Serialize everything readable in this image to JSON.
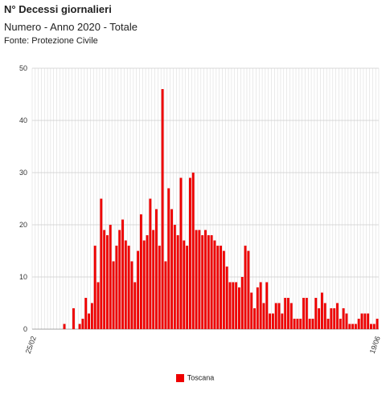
{
  "header": {
    "title": "N° Decessi giornalieri",
    "subtitle": "Numero - Anno 2020 - Totale",
    "source": "Fonte: Protezione Civile"
  },
  "chart_data": {
    "type": "bar",
    "title": "N° Decessi giornalieri",
    "subtitle": "Numero - Anno 2020 - Totale",
    "x_start_label": "25/02",
    "x_end_label": "19/06",
    "ylim": [
      0,
      50
    ],
    "yticks": [
      0,
      10,
      20,
      30,
      40,
      50
    ],
    "grid": true,
    "legend_position": "bottom",
    "color": "#ee0000",
    "series": [
      {
        "name": "Toscana",
        "values": [
          0,
          0,
          0,
          0,
          0,
          0,
          0,
          0,
          0,
          0,
          1,
          0,
          0,
          4,
          0,
          1,
          2,
          6,
          3,
          5,
          16,
          9,
          25,
          19,
          18,
          20,
          13,
          16,
          19,
          21,
          17,
          16,
          13,
          9,
          15,
          22,
          17,
          18,
          25,
          19,
          23,
          16,
          46,
          13,
          27,
          23,
          20,
          18,
          29,
          17,
          16,
          29,
          30,
          19,
          19,
          18,
          19,
          18,
          18,
          17,
          16,
          16,
          15,
          12,
          9,
          9,
          9,
          8,
          10,
          16,
          15,
          7,
          4,
          8,
          9,
          5,
          9,
          3,
          3,
          5,
          5,
          3,
          6,
          6,
          5,
          2,
          2,
          2,
          6,
          6,
          2,
          2,
          6,
          4,
          7,
          5,
          2,
          4,
          4,
          5,
          2,
          4,
          3,
          1,
          1,
          1,
          2,
          3,
          3,
          3,
          1,
          1,
          2
        ]
      }
    ]
  }
}
